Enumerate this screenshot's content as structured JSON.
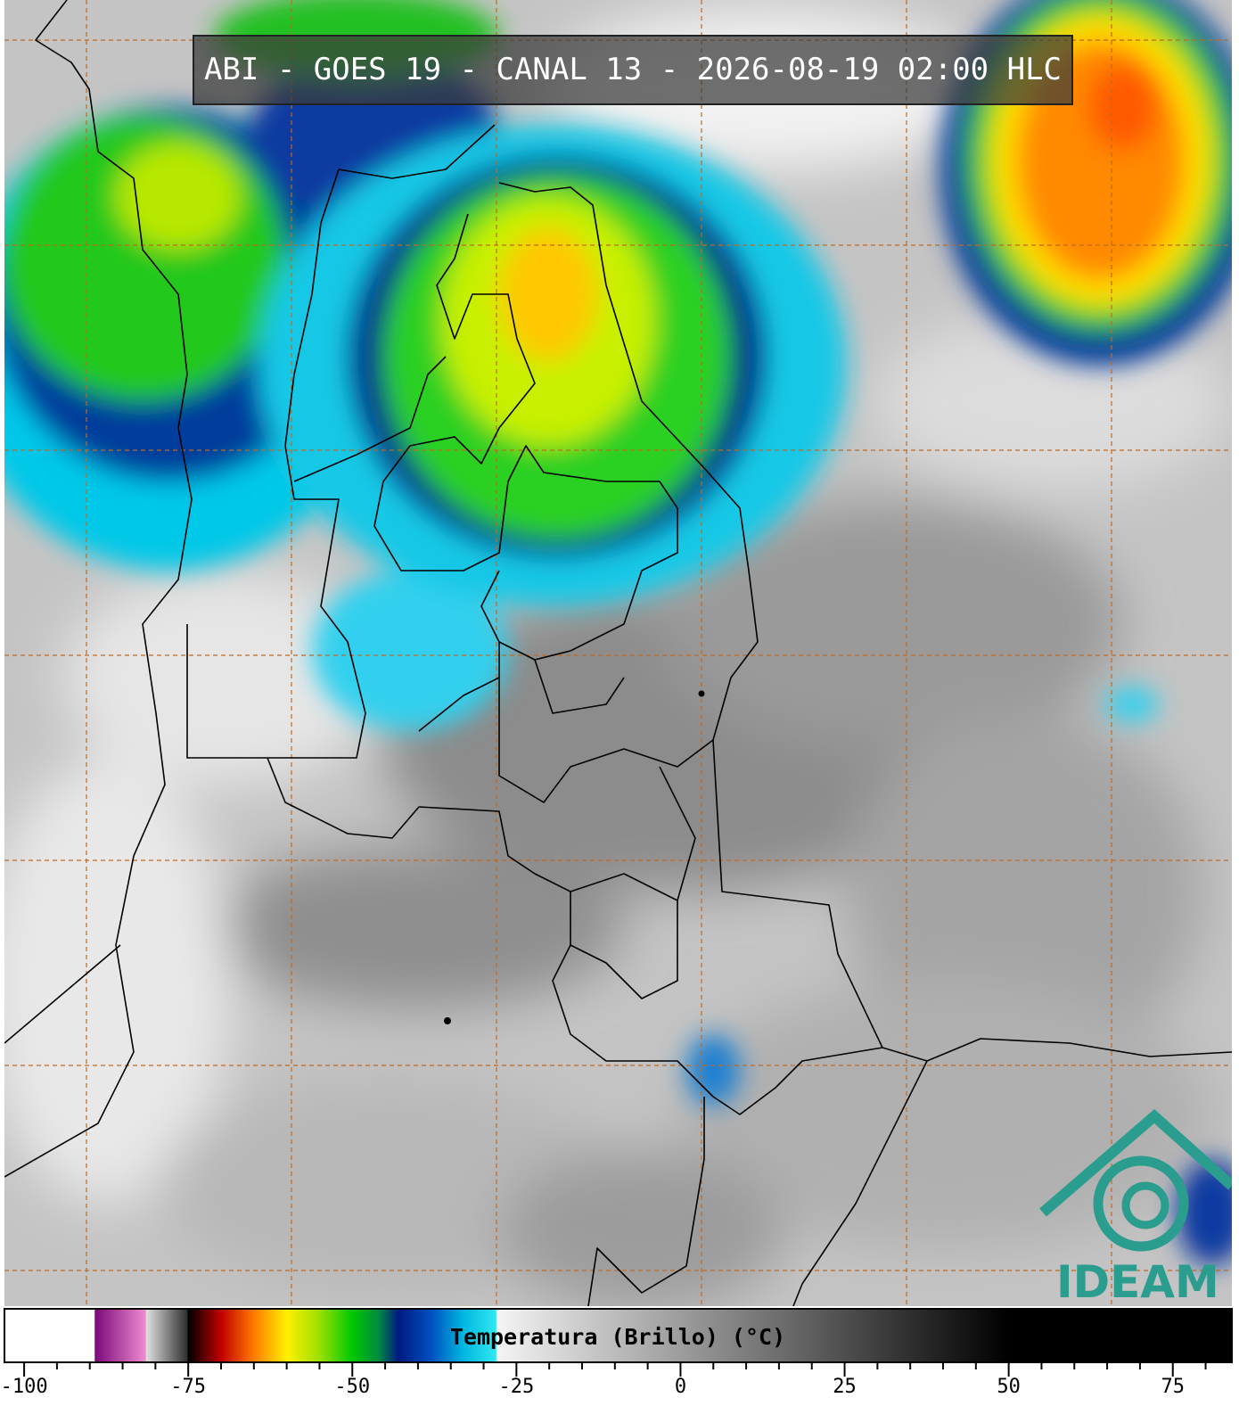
{
  "header": {
    "title": "ABI - GOES 19 - CANAL 13 - 2026-08-19 02:00 HLC"
  },
  "logo": {
    "text": "IDEAM"
  },
  "colorbar": {
    "label": "Temperatura (Brillo) (°C)",
    "range": [
      -103,
      84
    ],
    "ticks": [
      -100,
      -75,
      -50,
      -25,
      0,
      25,
      50,
      75
    ],
    "minor_ticks": [
      -95,
      -90,
      -85,
      -80,
      -70,
      -65,
      -60,
      -55,
      -45,
      -40,
      -35,
      -30,
      -20,
      -15,
      -10,
      -5,
      5,
      10,
      15,
      20,
      30,
      35,
      40,
      45,
      55,
      60,
      65,
      70,
      80
    ],
    "stops": [
      {
        "value": -103,
        "color": "#ffffff"
      },
      {
        "value": -89.3,
        "color": "#ffffff"
      },
      {
        "value": -89.2,
        "color": "#7a0a7a"
      },
      {
        "value": -81.5,
        "color": "#f08ad0"
      },
      {
        "value": -81.4,
        "color": "#e0e0e0"
      },
      {
        "value": -75.2,
        "color": "#303030"
      },
      {
        "value": -75,
        "color": "#000000"
      },
      {
        "value": -70,
        "color": "#c00000"
      },
      {
        "value": -65,
        "color": "#ff7a00"
      },
      {
        "value": -60,
        "color": "#fff000"
      },
      {
        "value": -55,
        "color": "#9ae000"
      },
      {
        "value": -50,
        "color": "#00c800"
      },
      {
        "value": -46,
        "color": "#008a40"
      },
      {
        "value": -43,
        "color": "#001a80"
      },
      {
        "value": -38,
        "color": "#0050c0"
      },
      {
        "value": -33,
        "color": "#00b8e0"
      },
      {
        "value": -28.1,
        "color": "#30e8f0"
      },
      {
        "value": -28,
        "color": "#f4f4f4"
      },
      {
        "value": 50,
        "color": "#000000"
      },
      {
        "value": 84,
        "color": "#000000"
      }
    ]
  }
}
